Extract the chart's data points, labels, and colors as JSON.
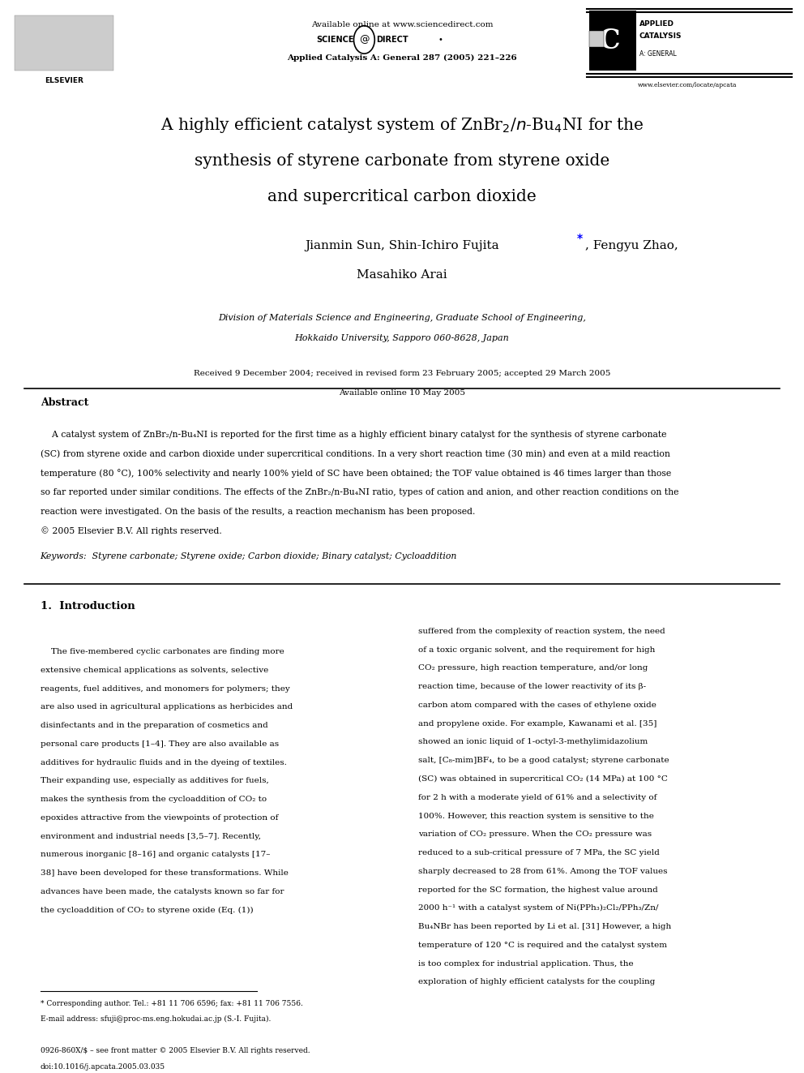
{
  "bg_color": "#ffffff",
  "available_online": "Available online at www.sciencedirect.com",
  "journal_info": "Applied Catalysis A: General 287 (2005) 221–226",
  "journal_url_right": "www.elsevier.com/locate/apcata",
  "affiliation1": "Division of Materials Science and Engineering, Graduate School of Engineering,",
  "affiliation2": "Hokkaido University, Sapporo 060-8628, Japan",
  "received": "Received 9 December 2004; received in revised form 23 February 2005; accepted 29 March 2005",
  "available": "Available online 10 May 2005",
  "abstract_title": "Abstract",
  "abstract_text": "    A catalyst system of ZnBr₂/n-Bu₄NI is reported for the first time as a highly efficient binary catalyst for the synthesis of styrene carbonate\n(SC) from styrene oxide and carbon dioxide under supercritical conditions. In a very short reaction time (30 min) and even at a mild reaction\ntemperature (80 °C), 100% selectivity and nearly 100% yield of SC have been obtained; the TOF value obtained is 46 times larger than those\nso far reported under similar conditions. The effects of the ZnBr₂/n-Bu₄NI ratio, types of cation and anion, and other reaction conditions on the\nreaction were investigated. On the basis of the results, a reaction mechanism has been proposed.\n© 2005 Elsevier B.V. All rights reserved.",
  "keywords": "Keywords:  Styrene carbonate; Styrene oxide; Carbon dioxide; Binary catalyst; Cycloaddition",
  "section1_title": "1.  Introduction",
  "intro_col1": "    The five-membered cyclic carbonates are finding more\nextensive chemical applications as solvents, selective\nreagents, fuel additives, and monomers for polymers; they\nare also used in agricultural applications as herbicides and\ndisinfectants and in the preparation of cosmetics and\npersonal care products [1–4]. They are also available as\nadditives for hydraulic fluids and in the dyeing of textiles.\nTheir expanding use, especially as additives for fuels,\nmakes the synthesis from the cycloaddition of CO₂ to\nepoxides attractive from the viewpoints of protection of\nenvironment and industrial needs [3,5–7]. Recently,\nnumerous inorganic [8–16] and organic catalysts [17–\n38] have been developed for these transformations. While\nadvances have been made, the catalysts known so far for\nthe cycloaddition of CO₂ to styrene oxide (Eq. (1))",
  "intro_col2": "suffered from the complexity of reaction system, the need\nof a toxic organic solvent, and the requirement for high\nCO₂ pressure, high reaction temperature, and/or long\nreaction time, because of the lower reactivity of its β-\ncarbon atom compared with the cases of ethylene oxide\nand propylene oxide. For example, Kawanami et al. [35]\nshowed an ionic liquid of 1-octyl-3-methylimidazolium\nsalt, [C₈-mim]BF₄, to be a good catalyst; styrene carbonate\n(SC) was obtained in supercritical CO₂ (14 MPa) at 100 °C\nfor 2 h with a moderate yield of 61% and a selectivity of\n100%. However, this reaction system is sensitive to the\nvariation of CO₂ pressure. When the CO₂ pressure was\nreduced to a sub-critical pressure of 7 MPa, the SC yield\nsharply decreased to 28 from 61%. Among the TOF values\nreported for the SC formation, the highest value around\n2000 h⁻¹ with a catalyst system of Ni(PPh₃)₂Cl₂/PPh₃/Zn/\nBu₄NBr has been reported by Li et al. [31] However, a high\ntemperature of 120 °C is required and the catalyst system\nis too complex for industrial application. Thus, the\nexploration of highly efficient catalysts for the coupling",
  "footnote1": "* Corresponding author. Tel.: +81 11 706 6596; fax: +81 11 706 7556.",
  "footnote2": "E-mail address: sfuji@proc-ms.eng.hokudai.ac.jp (S.-I. Fujita).",
  "footer1": "0926-860X/$ – see front matter © 2005 Elsevier B.V. All rights reserved.",
  "footer2": "doi:10.1016/j.apcata.2005.03.035"
}
